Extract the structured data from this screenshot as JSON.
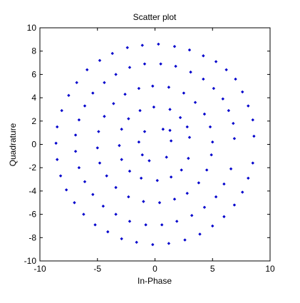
{
  "chart_data": {
    "type": "scatter",
    "title": "Scatter plot",
    "xlabel": "In-Phase",
    "ylabel": "Quadrature",
    "xlim": [
      -10,
      10
    ],
    "ylim": [
      -10,
      10
    ],
    "xticks": [
      -10,
      -5,
      0,
      5,
      10
    ],
    "yticks": [
      -10,
      -8,
      -6,
      -4,
      -2,
      0,
      2,
      4,
      6,
      8,
      10
    ],
    "grid": false,
    "legend": "none",
    "colors": {
      "marker": "#0000cc",
      "axes": "#000000",
      "background": "#ffffff"
    },
    "description_of_series": "signal constellation: received symbols forming concentric rotated rings",
    "rings": [
      {
        "radius": 1.4,
        "count": 8
      },
      {
        "radius": 3.1,
        "count": 16
      },
      {
        "radius": 5.0,
        "count": 24
      },
      {
        "radius": 6.9,
        "count": 32
      },
      {
        "radius": 8.6,
        "count": 40
      }
    ],
    "points": [
      [
        1.3,
        1.2
      ],
      [
        0.7,
        1.3
      ],
      [
        -0.9,
        1.1
      ],
      [
        -1.4,
        0.2
      ],
      [
        -1.1,
        -0.9
      ],
      [
        -0.5,
        -1.4
      ],
      [
        1.0,
        -1.1
      ],
      [
        1.4,
        0.3
      ],
      [
        3.0,
        0.6
      ],
      [
        2.8,
        1.5
      ],
      [
        2.2,
        2.3
      ],
      [
        1.3,
        3.0
      ],
      [
        -0.1,
        3.2
      ],
      [
        -1.3,
        2.9
      ],
      [
        -2.3,
        2.2
      ],
      [
        -2.9,
        1.3
      ],
      [
        -3.1,
        -0.1
      ],
      [
        -2.9,
        -1.3
      ],
      [
        -2.2,
        -2.3
      ],
      [
        -1.2,
        -2.9
      ],
      [
        0.2,
        -3.1
      ],
      [
        1.4,
        -2.8
      ],
      [
        2.3,
        -2.2
      ],
      [
        2.9,
        -1.2
      ],
      [
        5.0,
        0.2
      ],
      [
        4.8,
        1.5
      ],
      [
        4.3,
        2.6
      ],
      [
        3.5,
        3.6
      ],
      [
        2.5,
        4.4
      ],
      [
        1.2,
        4.9
      ],
      [
        -0.2,
        5.0
      ],
      [
        -1.4,
        4.8
      ],
      [
        -2.6,
        4.3
      ],
      [
        -3.6,
        3.5
      ],
      [
        -4.4,
        2.4
      ],
      [
        -4.9,
        1.1
      ],
      [
        -5.0,
        -0.3
      ],
      [
        -4.8,
        -1.6
      ],
      [
        -4.2,
        -2.7
      ],
      [
        -3.4,
        -3.7
      ],
      [
        -2.3,
        -4.5
      ],
      [
        -1.0,
        -4.9
      ],
      [
        0.4,
        -5.0
      ],
      [
        1.7,
        -4.7
      ],
      [
        2.8,
        -4.2
      ],
      [
        3.8,
        -3.3
      ],
      [
        4.5,
        -2.2
      ],
      [
        4.9,
        -0.9
      ],
      [
        6.9,
        0.5
      ],
      [
        6.8,
        1.8
      ],
      [
        6.4,
        2.9
      ],
      [
        5.9,
        3.9
      ],
      [
        5.1,
        4.8
      ],
      [
        4.2,
        5.6
      ],
      [
        3.1,
        6.2
      ],
      [
        1.8,
        6.7
      ],
      [
        0.5,
        6.9
      ],
      [
        -0.9,
        6.9
      ],
      [
        -2.2,
        6.6
      ],
      [
        -3.4,
        6.0
      ],
      [
        -4.4,
        5.3
      ],
      [
        -5.4,
        4.4
      ],
      [
        -6.1,
        3.3
      ],
      [
        -6.6,
        2.1
      ],
      [
        -6.9,
        0.8
      ],
      [
        -6.9,
        -0.6
      ],
      [
        -6.6,
        -2.0
      ],
      [
        -6.1,
        -3.2
      ],
      [
        -5.4,
        -4.3
      ],
      [
        -4.5,
        -5.3
      ],
      [
        -3.4,
        -6.0
      ],
      [
        -2.2,
        -6.6
      ],
      [
        -0.8,
        -6.9
      ],
      [
        0.6,
        -6.9
      ],
      [
        1.9,
        -6.6
      ],
      [
        3.2,
        -6.1
      ],
      [
        4.3,
        -5.4
      ],
      [
        5.3,
        -4.5
      ],
      [
        6.0,
        -3.4
      ],
      [
        6.6,
        -2.1
      ],
      [
        8.6,
        0.7
      ],
      [
        8.5,
        2.1
      ],
      [
        8.1,
        3.3
      ],
      [
        7.6,
        4.5
      ],
      [
        7.0,
        5.6
      ],
      [
        6.2,
        6.4
      ],
      [
        5.3,
        7.1
      ],
      [
        4.2,
        7.6
      ],
      [
        3.0,
        8.1
      ],
      [
        1.7,
        8.4
      ],
      [
        0.3,
        8.6
      ],
      [
        -1.1,
        8.5
      ],
      [
        -2.4,
        8.3
      ],
      [
        -3.7,
        7.8
      ],
      [
        -4.8,
        7.2
      ],
      [
        -5.9,
        6.4
      ],
      [
        -6.8,
        5.3
      ],
      [
        -7.5,
        4.2
      ],
      [
        -8.1,
        2.9
      ],
      [
        -8.5,
        1.5
      ],
      [
        -8.6,
        0.1
      ],
      [
        -8.5,
        -1.3
      ],
      [
        -8.2,
        -2.7
      ],
      [
        -7.7,
        -3.9
      ],
      [
        -7.0,
        -5.0
      ],
      [
        -6.2,
        -6.0
      ],
      [
        -5.2,
        -6.9
      ],
      [
        -4.1,
        -7.5
      ],
      [
        -2.9,
        -8.1
      ],
      [
        -1.6,
        -8.4
      ],
      [
        -0.2,
        -8.6
      ],
      [
        1.2,
        -8.5
      ],
      [
        2.6,
        -8.2
      ],
      [
        3.9,
        -7.7
      ],
      [
        5.0,
        -7.0
      ],
      [
        6.0,
        -6.2
      ],
      [
        6.9,
        -5.2
      ],
      [
        7.6,
        -4.1
      ],
      [
        8.1,
        -2.9
      ],
      [
        8.5,
        -1.6
      ]
    ]
  }
}
